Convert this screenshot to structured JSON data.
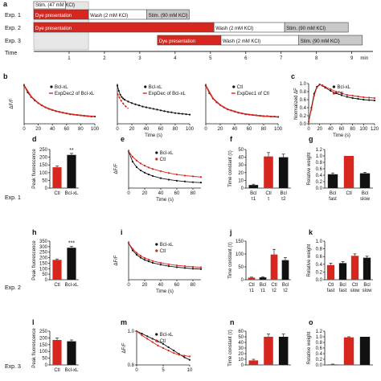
{
  "figure": {
    "panel_letters": [
      "a",
      "b",
      "c",
      "d",
      "e",
      "f",
      "g",
      "h",
      "i",
      "j",
      "k",
      "l",
      "m",
      "n",
      "o"
    ],
    "row_labels": [
      "Exp. 1",
      "Exp. 2",
      "Exp. 3"
    ],
    "colors": {
      "red": "#d7261e",
      "black": "#111111",
      "grey": "#c8c8c8",
      "dark_red": "#c22b1f"
    }
  },
  "timeline": {
    "time_label": "Time",
    "unit": "min",
    "ticks": [
      "1",
      "2",
      "3",
      "4",
      "5",
      "6",
      "7",
      "8",
      "9"
    ],
    "rows": [
      {
        "label": "Exp. 1",
        "segments": [
          {
            "text": "Stim. (47 mM KCl)",
            "start": 0.0,
            "end": 0.9,
            "style": "white",
            "raised": true
          },
          {
            "text": "Dye presentation",
            "start": 0.0,
            "end": 1.55,
            "style": "red"
          },
          {
            "text": "Wash (2 mM KCl)",
            "start": 1.55,
            "end": 3.2,
            "style": "white"
          },
          {
            "text": "Stim. (90 mM KCl)",
            "start": 3.2,
            "end": 4.4,
            "style": "grey"
          }
        ]
      },
      {
        "label": "Exp. 2",
        "segments": [
          {
            "text": "Dye presentation",
            "start": 0.0,
            "end": 5.1,
            "style": "red"
          },
          {
            "text": "Wash (2 mM KCl)",
            "start": 5.1,
            "end": 7.1,
            "style": "white"
          },
          {
            "text": "Stim. (90 mM KCl)",
            "start": 7.1,
            "end": 8.9,
            "style": "grey"
          }
        ]
      },
      {
        "label": "Exp. 3",
        "segments": [
          {
            "text": "Dye presentation",
            "start": 3.5,
            "end": 5.3,
            "style": "red"
          },
          {
            "text": "Wash (2 mM KCl)",
            "start": 5.3,
            "end": 7.5,
            "style": "white"
          },
          {
            "text": "Stim. (90 mM KCl)",
            "start": 7.5,
            "end": 9.3,
            "style": "grey"
          }
        ]
      }
    ],
    "shaded_interval": [
      0.0,
      1.55
    ]
  },
  "chart_data": [
    {
      "id": "b1",
      "type": "line",
      "xlabel": "",
      "ylabel": "ΔF/F",
      "xlim": [
        0,
        100
      ],
      "xticks": [
        "0",
        "20",
        "40",
        "60",
        "80",
        "100"
      ],
      "series": [
        {
          "name": "Bcl-xL",
          "kind": "points",
          "x": [
            0,
            5,
            10,
            15,
            20,
            25,
            30,
            35,
            40,
            45,
            50,
            55,
            60,
            65,
            70,
            75,
            80,
            85,
            90,
            95,
            100
          ],
          "y": [
            1.0,
            0.82,
            0.7,
            0.61,
            0.54,
            0.48,
            0.43,
            0.39,
            0.36,
            0.33,
            0.31,
            0.29,
            0.27,
            0.25,
            0.24,
            0.23,
            0.22,
            0.21,
            0.2,
            0.19,
            0.19
          ]
        },
        {
          "name": "ExpDec2 of Bcl-xL",
          "kind": "fit",
          "x": [
            0,
            10,
            20,
            30,
            40,
            50,
            60,
            70,
            80,
            90,
            100
          ],
          "y": [
            1.0,
            0.71,
            0.54,
            0.43,
            0.36,
            0.31,
            0.27,
            0.24,
            0.22,
            0.2,
            0.19
          ]
        }
      ]
    },
    {
      "id": "b2",
      "type": "line",
      "xlabel": "Time (s)",
      "ylabel": "",
      "xlim": [
        0,
        100
      ],
      "xticks": [
        "0",
        "20",
        "40",
        "60",
        "80",
        "100"
      ],
      "series": [
        {
          "name": "Bcl-xL",
          "kind": "points",
          "x": [
            0,
            2,
            4,
            6,
            8,
            10,
            15,
            20,
            25,
            30,
            35,
            40,
            45,
            50,
            55,
            60,
            65,
            70,
            75,
            80,
            85,
            90,
            95,
            100
          ],
          "y": [
            1.0,
            0.86,
            0.76,
            0.7,
            0.66,
            0.63,
            0.58,
            0.54,
            0.51,
            0.48,
            0.45,
            0.43,
            0.41,
            0.39,
            0.37,
            0.35,
            0.33,
            0.31,
            0.3,
            0.28,
            0.27,
            0.26,
            0.25,
            0.24
          ]
        },
        {
          "name": "ExpDec of Bcl-xL",
          "kind": "fit",
          "x": [
            0,
            3,
            6,
            10,
            15
          ],
          "y": [
            0.8,
            0.68,
            0.58,
            0.48,
            0.4
          ]
        }
      ]
    },
    {
      "id": "b3",
      "type": "line",
      "xlabel": "",
      "ylabel": "",
      "xlim": [
        0,
        100
      ],
      "xticks": [
        "0",
        "20",
        "40",
        "60",
        "80",
        "100"
      ],
      "series": [
        {
          "name": "Ctl",
          "kind": "points",
          "x": [
            0,
            5,
            10,
            15,
            20,
            25,
            30,
            35,
            40,
            45,
            50,
            55,
            60,
            65,
            70,
            75,
            80,
            85,
            90,
            95,
            100
          ],
          "y": [
            1.0,
            0.8,
            0.66,
            0.56,
            0.49,
            0.43,
            0.38,
            0.35,
            0.32,
            0.29,
            0.27,
            0.25,
            0.24,
            0.23,
            0.22,
            0.21,
            0.2,
            0.2,
            0.19,
            0.19,
            0.18
          ]
        },
        {
          "name": "ExpDec1 of Ctl",
          "kind": "fit",
          "x": [
            0,
            10,
            20,
            30,
            40,
            50,
            60,
            70,
            80,
            90,
            100
          ],
          "y": [
            1.0,
            0.66,
            0.49,
            0.38,
            0.32,
            0.27,
            0.24,
            0.22,
            0.2,
            0.19,
            0.18
          ]
        }
      ]
    },
    {
      "id": "c",
      "type": "line",
      "xlabel": "Time (s)",
      "ylabel": "Normalized ΔF",
      "xlim": [
        0,
        120
      ],
      "ylim": [
        0,
        1.0
      ],
      "xticks": [
        "0",
        "20",
        "40",
        "60",
        "80",
        "100",
        "120"
      ],
      "yticks": [
        "0.0",
        "0.2",
        "0.4",
        "0.6",
        "0.8",
        "1.0"
      ],
      "series": [
        {
          "name": "Bcl-xL",
          "x": [
            0,
            5,
            10,
            15,
            20,
            25,
            30,
            40,
            50,
            60,
            70,
            80,
            90,
            100,
            110,
            120
          ],
          "y": [
            0.05,
            0.4,
            0.75,
            0.92,
            0.98,
            0.95,
            0.9,
            0.82,
            0.76,
            0.71,
            0.67,
            0.64,
            0.62,
            0.6,
            0.59,
            0.58
          ]
        },
        {
          "name": "Ctl",
          "x": [
            0,
            5,
            10,
            15,
            20,
            25,
            30,
            40,
            50,
            60,
            70,
            80,
            90,
            100,
            110,
            120
          ],
          "y": [
            0.05,
            0.35,
            0.7,
            0.9,
            0.97,
            0.96,
            0.92,
            0.86,
            0.8,
            0.76,
            0.72,
            0.7,
            0.68,
            0.66,
            0.65,
            0.64
          ]
        }
      ]
    },
    {
      "id": "d",
      "type": "bar",
      "ylabel": "Peak fluorescence",
      "ylim": [
        0,
        250
      ],
      "yticks": [
        "0",
        "50",
        "100",
        "150",
        "200",
        "250"
      ],
      "categories": [
        "Ctl",
        "Bcl-xL"
      ],
      "values": [
        135,
        215
      ],
      "errors": [
        8,
        10
      ],
      "annotation": "**"
    },
    {
      "id": "e",
      "type": "line",
      "xlabel": "Time (s)",
      "ylabel": "ΔF/F",
      "xlim": [
        0,
        90
      ],
      "xticks": [
        "0",
        "20",
        "40",
        "60",
        "80"
      ],
      "series": [
        {
          "name": "Bcl-xL",
          "x": [
            0,
            5,
            10,
            15,
            20,
            25,
            30,
            40,
            50,
            60,
            70,
            80,
            90
          ],
          "y": [
            1.0,
            0.72,
            0.57,
            0.48,
            0.42,
            0.37,
            0.33,
            0.27,
            0.23,
            0.2,
            0.18,
            0.16,
            0.15
          ]
        },
        {
          "name": "Ctl",
          "x": [
            0,
            5,
            10,
            15,
            20,
            25,
            30,
            40,
            50,
            60,
            70,
            80,
            90
          ],
          "y": [
            1.0,
            0.85,
            0.75,
            0.67,
            0.61,
            0.56,
            0.52,
            0.46,
            0.41,
            0.37,
            0.34,
            0.32,
            0.3
          ]
        }
      ]
    },
    {
      "id": "f",
      "type": "bar",
      "ylabel": "Time constant (τ)",
      "ylim": [
        0,
        50
      ],
      "yticks": [
        "0",
        "10",
        "20",
        "30",
        "40",
        "50"
      ],
      "categories": [
        "Bcl τ1",
        "Ctl τ",
        "Bcl τ2"
      ],
      "values": [
        4,
        41,
        40
      ],
      "errors": [
        1,
        5,
        4
      ],
      "colors": [
        "#111111",
        "#d7261e",
        "#111111"
      ]
    },
    {
      "id": "g",
      "type": "bar",
      "ylabel": "Relative weight",
      "ylim": [
        0,
        1.2
      ],
      "yticks": [
        "0.0",
        "0.2",
        "0.4",
        "0.6",
        "0.8",
        "1.0",
        "1.2"
      ],
      "categories": [
        "Bcl fast",
        "Ctl",
        "Bcl slow"
      ],
      "values": [
        0.43,
        1.0,
        0.46
      ],
      "errors": [
        0.04,
        0.0,
        0.03
      ],
      "colors": [
        "#111111",
        "#d7261e",
        "#111111"
      ]
    },
    {
      "id": "h",
      "type": "bar",
      "ylabel": "Peak fluorescence",
      "ylim": [
        0,
        350
      ],
      "yticks": [
        "0",
        "50",
        "100",
        "150",
        "200",
        "250",
        "300",
        "350"
      ],
      "categories": [
        "Ctl",
        "Bcl-xL"
      ],
      "values": [
        180,
        290
      ],
      "errors": [
        8,
        12
      ],
      "annotation": "***"
    },
    {
      "id": "i",
      "type": "line",
      "xlabel": "Time (s)",
      "ylabel": "ΔF/F",
      "xlim": [
        0,
        90
      ],
      "xticks": [
        "0",
        "20",
        "40",
        "60",
        "80"
      ],
      "series": [
        {
          "name": "Bcl-xL",
          "x": [
            0,
            5,
            10,
            15,
            20,
            25,
            30,
            40,
            50,
            60,
            70,
            80,
            90
          ],
          "y": [
            1.0,
            0.8,
            0.68,
            0.6,
            0.54,
            0.5,
            0.46,
            0.41,
            0.37,
            0.34,
            0.32,
            0.3,
            0.29
          ]
        },
        {
          "name": "Ctl",
          "x": [
            0,
            5,
            10,
            15,
            20,
            25,
            30,
            40,
            50,
            60,
            70,
            80,
            90
          ],
          "y": [
            1.0,
            0.84,
            0.73,
            0.65,
            0.59,
            0.55,
            0.51,
            0.46,
            0.42,
            0.39,
            0.37,
            0.35,
            0.34
          ]
        }
      ]
    },
    {
      "id": "j",
      "type": "bar",
      "ylabel": "Time constant (τ)",
      "ylim": [
        0,
        150
      ],
      "yticks": [
        "0",
        "50",
        "100",
        "150"
      ],
      "categories": [
        "Ctl τ1",
        "Bcl τ1",
        "Ctl τ2",
        "Bcl τ2"
      ],
      "values": [
        8,
        9,
        98,
        76
      ],
      "errors": [
        2,
        2,
        20,
        10
      ],
      "colors": [
        "#d7261e",
        "#111111",
        "#d7261e",
        "#111111"
      ]
    },
    {
      "id": "k",
      "type": "bar",
      "ylabel": "Relative weight",
      "ylim": [
        0,
        1.0
      ],
      "yticks": [
        "0.0",
        "0.2",
        "0.4",
        "0.6",
        "0.8",
        "1.0"
      ],
      "categories": [
        "Ctl fast",
        "Bcl fast",
        "Ctl slow",
        "Bcl slow"
      ],
      "values": [
        0.38,
        0.43,
        0.62,
        0.57
      ],
      "errors": [
        0.05,
        0.04,
        0.05,
        0.04
      ],
      "colors": [
        "#d7261e",
        "#111111",
        "#d7261e",
        "#111111"
      ]
    },
    {
      "id": "l",
      "type": "bar",
      "ylabel": "Peak fluorescence",
      "ylim": [
        0,
        250
      ],
      "yticks": [
        "0",
        "50",
        "100",
        "150",
        "200",
        "250"
      ],
      "categories": [
        "Ctl",
        "Bcl-xL"
      ],
      "values": [
        185,
        175
      ],
      "errors": [
        15,
        10
      ]
    },
    {
      "id": "m",
      "type": "line",
      "xlabel": "",
      "ylabel": "ΔF/F",
      "xlim": [
        0,
        10
      ],
      "ylim": [
        0.8,
        1.0
      ],
      "xticks": [
        "0",
        "5",
        "10"
      ],
      "yticks": [
        "0.8",
        "1.0"
      ],
      "series": [
        {
          "name": "Bcl-xL",
          "x": [
            0,
            1,
            2,
            3,
            4,
            5,
            6,
            7,
            8,
            9,
            10
          ],
          "y": [
            1.0,
            0.985,
            0.97,
            0.955,
            0.94,
            0.925,
            0.905,
            0.885,
            0.865,
            0.845,
            0.83
          ]
        },
        {
          "name": "Ctl",
          "x": [
            0,
            1,
            2,
            3,
            4,
            5,
            6,
            7,
            8,
            9,
            10
          ],
          "y": [
            1.0,
            0.975,
            0.955,
            0.935,
            0.915,
            0.9,
            0.885,
            0.87,
            0.86,
            0.855,
            0.85
          ]
        }
      ]
    },
    {
      "id": "n",
      "type": "bar",
      "ylabel": "Time constant (τ)",
      "ylim": [
        0,
        60
      ],
      "yticks": [
        "0",
        "10",
        "20",
        "30",
        "40",
        "50",
        "60"
      ],
      "categories": [
        "",
        "",
        ""
      ],
      "values": [
        8,
        50,
        50
      ],
      "errors": [
        2,
        5,
        5
      ],
      "colors": [
        "#d7261e",
        "#d7261e",
        "#111111"
      ]
    },
    {
      "id": "o",
      "type": "bar",
      "ylabel": "Relative weight",
      "ylim": [
        0,
        1.2
      ],
      "yticks": [
        "0.0",
        "0.2",
        "0.4",
        "0.6",
        "0.8",
        "1.0",
        "1.2"
      ],
      "categories": [
        "",
        "",
        ""
      ],
      "values": [
        0.02,
        0.98,
        1.0
      ],
      "errors": [
        0.01,
        0.02,
        0.0
      ],
      "colors": [
        "#d7261e",
        "#d7261e",
        "#111111"
      ]
    }
  ]
}
